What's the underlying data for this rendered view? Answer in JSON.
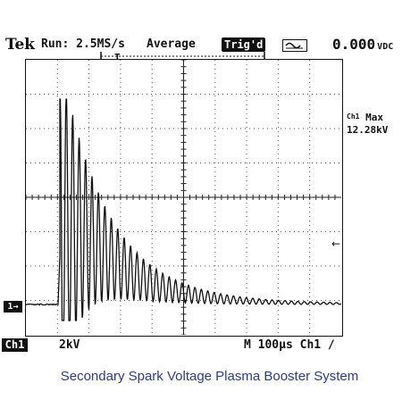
{
  "status_bar": {
    "brand": "Tek",
    "run_state": "Run: 2.5MS/s",
    "acquire_mode": "Average",
    "trigger_state": "Trig'd",
    "coupling_icon": "ac-coupling-icon",
    "readout_value": "0.000",
    "readout_unit": "VDC"
  },
  "measurement": {
    "channel": "Ch1",
    "label": "Max",
    "value": "12.28kV"
  },
  "markers": {
    "channel_ground": "1→",
    "trigger_level_icon": "left-arrow-icon"
  },
  "bottom_bar": {
    "channel_badge": "Ch1",
    "volts_per_div": "2kV",
    "timebase": "M 100µs Ch1 ∕"
  },
  "caption": "Secondary Spark Voltage Plasma Booster System",
  "colors": {
    "trace": "#111111",
    "caption": "#2b3d8c",
    "background": "#ffffff"
  }
}
